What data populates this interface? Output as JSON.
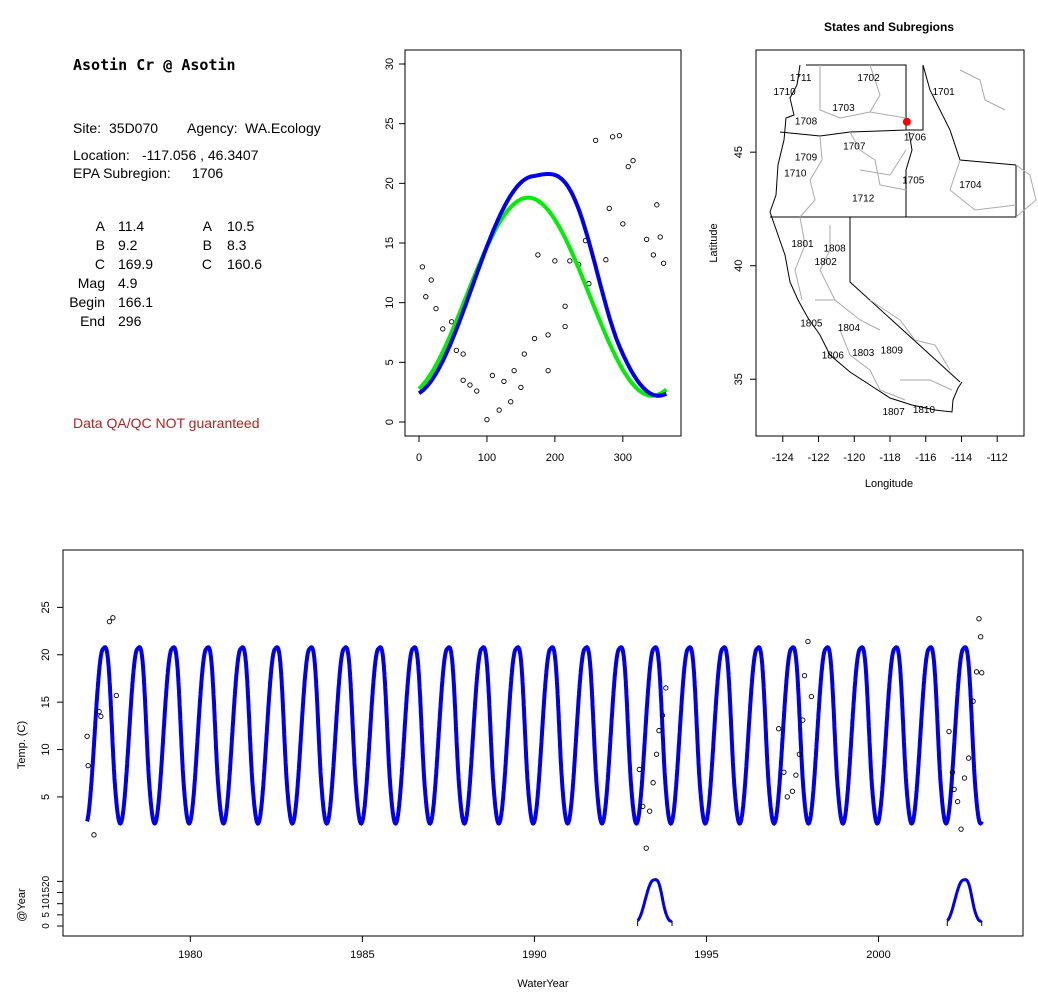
{
  "info": {
    "title": "Asotin Cr @ Asotin",
    "site_label": "Site:",
    "site": "35D070",
    "agency_label": "Agency:",
    "agency": "WA.Ecology",
    "location_label": "Location:",
    "location": "-117.056 , 46.3407",
    "subregion_label": "EPA Subregion:",
    "subregion": "1706",
    "params_left": [
      {
        "label": "A",
        "value": "11.4"
      },
      {
        "label": "B",
        "value": "9.2"
      },
      {
        "label": "C",
        "value": "169.9"
      },
      {
        "label": "Mag",
        "value": "4.9"
      },
      {
        "label": "Begin",
        "value": "166.1"
      },
      {
        "label": "End",
        "value": "296"
      }
    ],
    "params_right": [
      {
        "label": "A",
        "value": "10.5"
      },
      {
        "label": "B",
        "value": "8.3"
      },
      {
        "label": "C",
        "value": "160.6"
      }
    ],
    "qa_note": "Data QA/QC NOT guaranteed"
  },
  "colors": {
    "fit_primary": "#0000ee",
    "fit_secondary": "#00ee00",
    "site_marker": "#ff0000",
    "qa_text": "#b22222"
  },
  "chart_data": [
    {
      "type": "scatter",
      "xlim": [
        0,
        365
      ],
      "ylim": [
        0,
        30
      ],
      "x_ticks": [
        0,
        100,
        200,
        300
      ],
      "y_ticks": [
        0,
        5,
        10,
        15,
        20,
        25,
        30
      ],
      "points": [
        [
          5,
          13.0
        ],
        [
          10,
          10.5
        ],
        [
          18,
          11.9
        ],
        [
          25,
          9.5
        ],
        [
          35,
          7.8
        ],
        [
          48,
          8.4
        ],
        [
          55,
          6.0
        ],
        [
          65,
          5.7
        ],
        [
          65,
          3.5
        ],
        [
          75,
          3.1
        ],
        [
          85,
          2.6
        ],
        [
          100,
          0.2
        ],
        [
          108,
          3.9
        ],
        [
          118,
          1.0
        ],
        [
          125,
          3.4
        ],
        [
          135,
          1.7
        ],
        [
          140,
          4.3
        ],
        [
          150,
          2.9
        ],
        [
          155,
          5.7
        ],
        [
          170,
          7.0
        ],
        [
          175,
          14.0
        ],
        [
          190,
          4.3
        ],
        [
          190,
          7.3
        ],
        [
          200,
          13.5
        ],
        [
          215,
          8.0
        ],
        [
          215,
          9.7
        ],
        [
          222,
          13.5
        ],
        [
          235,
          13.2
        ],
        [
          245,
          15.2
        ],
        [
          250,
          11.6
        ],
        [
          260,
          23.6
        ],
        [
          275,
          13.6
        ],
        [
          280,
          17.9
        ],
        [
          285,
          23.9
        ],
        [
          295,
          24.0
        ],
        [
          300,
          16.6
        ],
        [
          308,
          21.4
        ],
        [
          315,
          21.9
        ],
        [
          335,
          15.3
        ],
        [
          345,
          14.0
        ],
        [
          350,
          18.2
        ],
        [
          355,
          15.5
        ],
        [
          360,
          13.3
        ]
      ],
      "series": [
        {
          "name": "",
          "color": "#00ee00",
          "A": 10.5,
          "B": 8.3,
          "C": 160.6
        },
        {
          "name": "",
          "color": "#0000ee",
          "A": 11.4,
          "B": 9.2,
          "C": 169.9,
          "Mag": 4.9,
          "Begin": 166.1,
          "End": 296
        }
      ]
    },
    {
      "type": "map",
      "title": "States and Subregions",
      "xlabel": "Longitude",
      "ylabel": "Latitude",
      "xlim": [
        -125.5,
        -110.5
      ],
      "ylim": [
        32.5,
        49.5
      ],
      "x_ticks": [
        -124,
        -122,
        -120,
        -118,
        -116,
        -114,
        -112
      ],
      "y_ticks": [
        35,
        40,
        45
      ],
      "site": {
        "lon": -117.056,
        "lat": 46.3407
      },
      "region_labels": [
        {
          "label": "1702",
          "lon": -119.2,
          "lat": 48.3
        },
        {
          "label": "1711",
          "lon": -123.0,
          "lat": 48.3
        },
        {
          "label": "1710",
          "lon": -123.9,
          "lat": 47.7
        },
        {
          "label": "1701",
          "lon": -115.0,
          "lat": 47.7
        },
        {
          "label": "1703",
          "lon": -120.6,
          "lat": 47.0
        },
        {
          "label": "1708",
          "lon": -122.7,
          "lat": 46.4
        },
        {
          "label": "1706",
          "lon": -116.6,
          "lat": 45.7
        },
        {
          "label": "1707",
          "lon": -120.0,
          "lat": 45.3
        },
        {
          "label": "1709",
          "lon": -122.7,
          "lat": 44.8
        },
        {
          "label": "1710",
          "lon": -123.3,
          "lat": 44.1
        },
        {
          "label": "1705",
          "lon": -116.7,
          "lat": 43.8
        },
        {
          "label": "1704",
          "lon": -113.5,
          "lat": 43.6
        },
        {
          "label": "1712",
          "lon": -119.5,
          "lat": 43.0
        },
        {
          "label": "1801",
          "lon": -122.9,
          "lat": 41.0
        },
        {
          "label": "1808",
          "lon": -121.1,
          "lat": 40.8
        },
        {
          "label": "1802",
          "lon": -121.6,
          "lat": 40.2
        },
        {
          "label": "1805",
          "lon": -122.4,
          "lat": 37.5
        },
        {
          "label": "1804",
          "lon": -120.3,
          "lat": 37.3
        },
        {
          "label": "1806",
          "lon": -121.2,
          "lat": 36.1
        },
        {
          "label": "1803",
          "lon": -119.5,
          "lat": 36.2
        },
        {
          "label": "1809",
          "lon": -117.9,
          "lat": 36.3
        },
        {
          "label": "1810",
          "lon": -116.1,
          "lat": 33.7
        },
        {
          "label": "1807",
          "lon": -117.8,
          "lat": 33.6
        }
      ]
    },
    {
      "type": "line",
      "xlabel": "WaterYear",
      "ylabel": "Temp. (C)",
      "ylabel_sub": "@Year",
      "xlim": [
        1976.3,
        2004.2
      ],
      "x_ticks": [
        1980,
        1985,
        1990,
        1995,
        2000
      ],
      "y_ticks": [
        5,
        10,
        15,
        20,
        25
      ],
      "sub_y_ticks": [
        0,
        5,
        10,
        15,
        20
      ],
      "start": 1977.0,
      "end": 2003.0,
      "model": {
        "A": 11.4,
        "B": 9.2,
        "C": 169.9,
        "Mag": 4.9,
        "Begin": 166.1,
        "End": 296
      },
      "points": [
        [
          1977.0,
          11.4
        ],
        [
          1977.03,
          8.3
        ],
        [
          1977.2,
          1.0
        ],
        [
          1977.35,
          14.0
        ],
        [
          1977.4,
          13.5
        ],
        [
          1977.65,
          23.5
        ],
        [
          1977.75,
          23.9
        ],
        [
          1977.85,
          15.7
        ],
        [
          1993.05,
          7.9
        ],
        [
          1993.15,
          4.0
        ],
        [
          1993.25,
          -0.4
        ],
        [
          1993.35,
          3.5
        ],
        [
          1993.45,
          6.5
        ],
        [
          1993.55,
          9.5
        ],
        [
          1993.62,
          12.0
        ],
        [
          1993.72,
          13.6
        ],
        [
          1993.82,
          16.5
        ],
        [
          1997.1,
          12.2
        ],
        [
          1997.25,
          7.6
        ],
        [
          1997.35,
          5.0
        ],
        [
          1997.5,
          5.6
        ],
        [
          1997.6,
          7.3
        ],
        [
          1997.7,
          9.5
        ],
        [
          1997.8,
          13.1
        ],
        [
          1997.85,
          17.8
        ],
        [
          1997.95,
          21.4
        ],
        [
          1998.05,
          15.6
        ],
        [
          2002.05,
          11.9
        ],
        [
          2002.15,
          7.6
        ],
        [
          2002.2,
          5.8
        ],
        [
          2002.3,
          4.5
        ],
        [
          2002.4,
          1.6
        ],
        [
          2002.5,
          7.0
        ],
        [
          2002.62,
          9.1
        ],
        [
          2002.75,
          15.1
        ],
        [
          2002.85,
          18.2
        ],
        [
          2002.92,
          23.8
        ],
        [
          2002.97,
          21.9
        ],
        [
          2003.0,
          18.1
        ]
      ],
      "partial_years": [
        1993,
        2002
      ]
    }
  ]
}
